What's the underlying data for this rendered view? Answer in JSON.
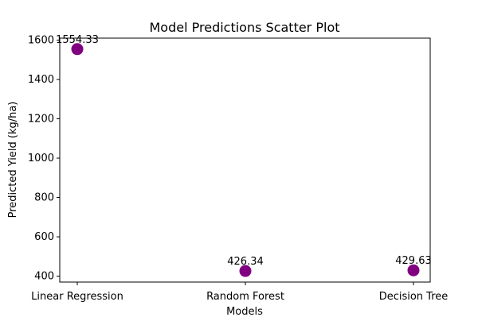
{
  "chart_data": {
    "type": "scatter",
    "title": "Model Predictions Scatter Plot",
    "xlabel": "Models",
    "ylabel": "Predicted Yield (kg/ha)",
    "categories": [
      "Linear Regression",
      "Random Forest",
      "Decision Tree"
    ],
    "values": [
      1554.33,
      426.34,
      429.63
    ],
    "data_labels": [
      "1554.33",
      "426.34",
      "429.63"
    ],
    "ylim": [
      370,
      1610
    ],
    "yticks": [
      400,
      600,
      800,
      1000,
      1200,
      1400,
      1600
    ],
    "ytick_labels": [
      "400",
      "600",
      "800",
      "1000",
      "1200",
      "1400",
      "1600"
    ],
    "marker_color": "#800080",
    "grid": false,
    "legend": "none"
  }
}
